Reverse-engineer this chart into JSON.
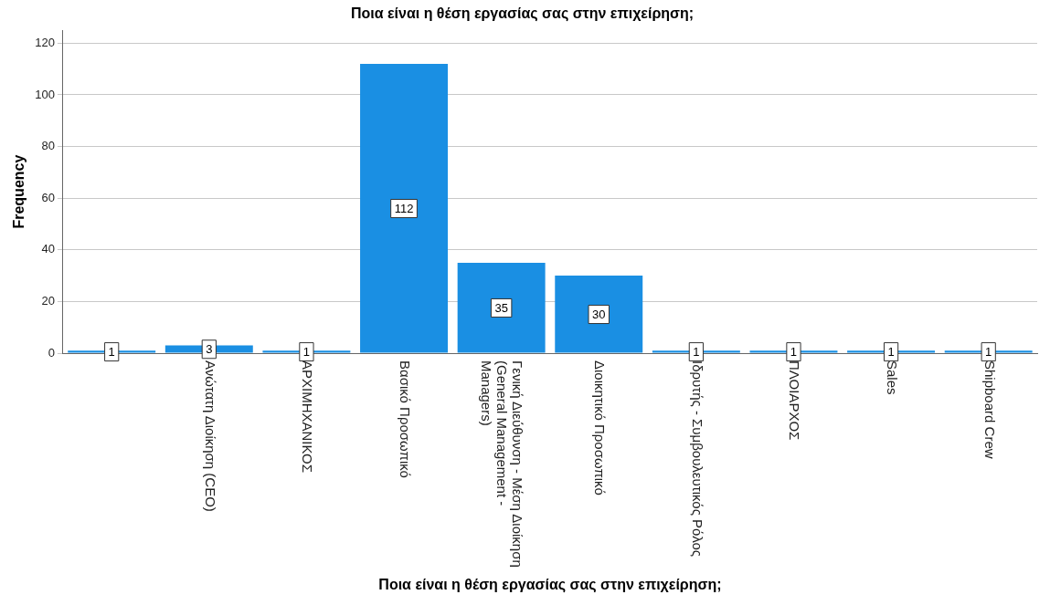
{
  "chart_data": {
    "type": "bar",
    "title": "Ποια είναι η θέση εργασίας σας στην επιχείρηση;",
    "xlabel": "Ποια είναι η θέση εργασίας σας στην επιχείρηση;",
    "ylabel": "Frequency",
    "categories": [
      null,
      "Ανώτατη Διοίκηση (CEO)",
      "ΑΡΧΙΜΗΧΑΝΙΚΟΣ",
      "Βασικό Προσωπικό",
      "Γενική Διεύθυνση - Μέση Διοίκηση (General Management - Managers)",
      "Διοικητικό Προσωπικό",
      "Ιδρυτής - Συμβουλευτικός Ρόλος",
      "ΠΛΟΙΑΡΧΟΣ",
      "Sales",
      "Shipboard Crew"
    ],
    "values": [
      1,
      3,
      1,
      112,
      35,
      30,
      1,
      1,
      1,
      1
    ],
    "color": "#1a8fe3",
    "ylim": [
      0,
      125
    ],
    "yticks": [
      0,
      20,
      40,
      60,
      80,
      100,
      120
    ],
    "grid": "y",
    "data_labels": true
  }
}
